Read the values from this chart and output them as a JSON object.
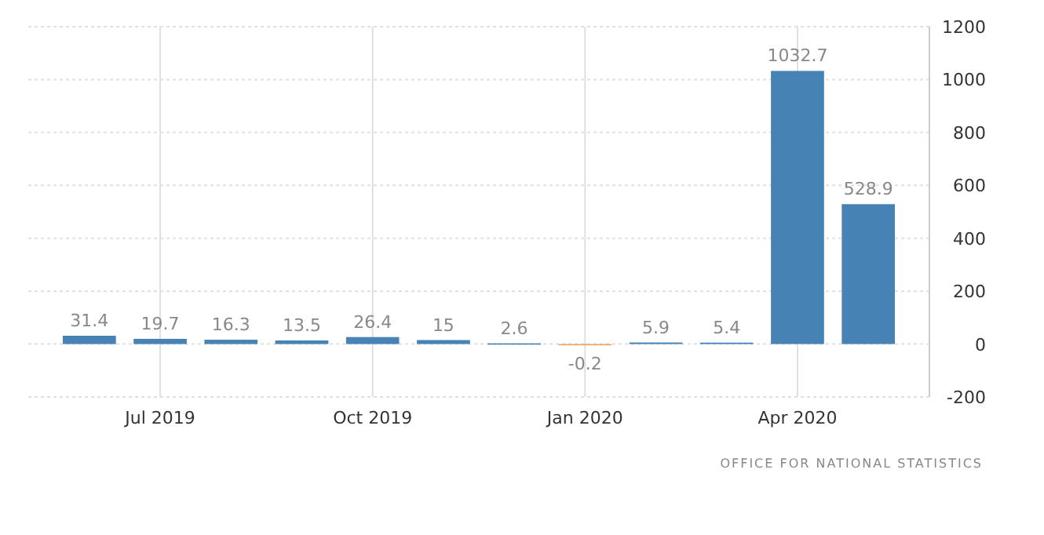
{
  "chart_data": {
    "type": "bar",
    "categories": [
      null,
      "Jul 2019",
      null,
      null,
      "Oct 2019",
      null,
      null,
      "Jan 2020",
      null,
      null,
      "Apr 2020",
      null
    ],
    "values": [
      31.4,
      19.7,
      16.3,
      13.5,
      26.4,
      15,
      2.6,
      -0.2,
      5.9,
      5.4,
      1032.7,
      528.9
    ],
    "colors": [
      "#4682b4",
      "#4682b4",
      "#4682b4",
      "#4682b4",
      "#4682b4",
      "#4682b4",
      "#4682b4",
      "#f0a050",
      "#4682b4",
      "#4682b4",
      "#4682b4",
      "#4682b4"
    ],
    "data_labels": true,
    "ylim": [
      -200,
      1200
    ],
    "yticks": [
      -200,
      0,
      200,
      400,
      600,
      800,
      1000,
      1200
    ],
    "grid": true,
    "annotations": [
      "OFFICE FOR NATIONAL STATISTICS"
    ]
  }
}
